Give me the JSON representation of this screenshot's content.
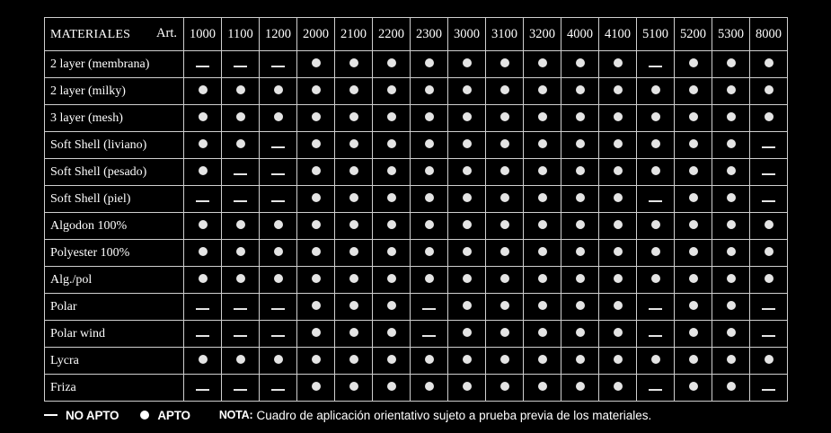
{
  "header": {
    "materials_label": "MATERIALES",
    "art_label": "Art.",
    "articles": [
      "1000",
      "1100",
      "1200",
      "2000",
      "2100",
      "2200",
      "2300",
      "3000",
      "3100",
      "3200",
      "4000",
      "4100",
      "5100",
      "5200",
      "5300",
      "8000"
    ]
  },
  "rows": [
    {
      "material": "2 layer (membrana)",
      "values": [
        "no",
        "no",
        "no",
        "si",
        "si",
        "si",
        "si",
        "si",
        "si",
        "si",
        "si",
        "si",
        "no",
        "si",
        "si",
        "si"
      ]
    },
    {
      "material": "2 layer (milky)",
      "values": [
        "si",
        "si",
        "si",
        "si",
        "si",
        "si",
        "si",
        "si",
        "si",
        "si",
        "si",
        "si",
        "si",
        "si",
        "si",
        "si"
      ]
    },
    {
      "material": "3 layer (mesh)",
      "values": [
        "si",
        "si",
        "si",
        "si",
        "si",
        "si",
        "si",
        "si",
        "si",
        "si",
        "si",
        "si",
        "si",
        "si",
        "si",
        "si"
      ]
    },
    {
      "material": "Soft Shell (liviano)",
      "values": [
        "si",
        "si",
        "no",
        "si",
        "si",
        "si",
        "si",
        "si",
        "si",
        "si",
        "si",
        "si",
        "si",
        "si",
        "si",
        "no"
      ]
    },
    {
      "material": "Soft Shell (pesado)",
      "values": [
        "si",
        "no",
        "no",
        "si",
        "si",
        "si",
        "si",
        "si",
        "si",
        "si",
        "si",
        "si",
        "si",
        "si",
        "si",
        "no"
      ]
    },
    {
      "material": "Soft Shell (piel)",
      "values": [
        "no",
        "no",
        "no",
        "si",
        "si",
        "si",
        "si",
        "si",
        "si",
        "si",
        "si",
        "si",
        "no",
        "si",
        "si",
        "no"
      ]
    },
    {
      "material": "Algodon 100%",
      "values": [
        "si",
        "si",
        "si",
        "si",
        "si",
        "si",
        "si",
        "si",
        "si",
        "si",
        "si",
        "si",
        "si",
        "si",
        "si",
        "si"
      ]
    },
    {
      "material": "Polyester 100%",
      "values": [
        "si",
        "si",
        "si",
        "si",
        "si",
        "si",
        "si",
        "si",
        "si",
        "si",
        "si",
        "si",
        "si",
        "si",
        "si",
        "si"
      ]
    },
    {
      "material": "Alg./pol",
      "values": [
        "si",
        "si",
        "si",
        "si",
        "si",
        "si",
        "si",
        "si",
        "si",
        "si",
        "si",
        "si",
        "si",
        "si",
        "si",
        "si"
      ]
    },
    {
      "material": "Polar",
      "values": [
        "no",
        "no",
        "no",
        "si",
        "si",
        "si",
        "no",
        "si",
        "si",
        "si",
        "si",
        "si",
        "no",
        "si",
        "si",
        "no"
      ]
    },
    {
      "material": "Polar wind",
      "values": [
        "no",
        "no",
        "no",
        "si",
        "si",
        "si",
        "no",
        "si",
        "si",
        "si",
        "si",
        "si",
        "no",
        "si",
        "si",
        "no"
      ]
    },
    {
      "material": "Lycra",
      "values": [
        "si",
        "si",
        "si",
        "si",
        "si",
        "si",
        "si",
        "si",
        "si",
        "si",
        "si",
        "si",
        "si",
        "si",
        "si",
        "si"
      ]
    },
    {
      "material": "Friza",
      "values": [
        "no",
        "no",
        "no",
        "si",
        "si",
        "si",
        "si",
        "si",
        "si",
        "si",
        "si",
        "si",
        "no",
        "si",
        "si",
        "no"
      ]
    }
  ],
  "legend": {
    "no_apto_label": "NO APTO",
    "apto_label": "APTO",
    "nota_label": "NOTA:",
    "nota_text": "Cuadro de aplicación orientativo sujeto a prueba previa de los materiales."
  },
  "symbols": {
    "si": "bullet-dot",
    "no": "em-dash"
  },
  "colors": {
    "background": "#000000",
    "text": "#ffffff",
    "grid_line": "#cfcfcf",
    "mark": "#e4e4e4"
  }
}
